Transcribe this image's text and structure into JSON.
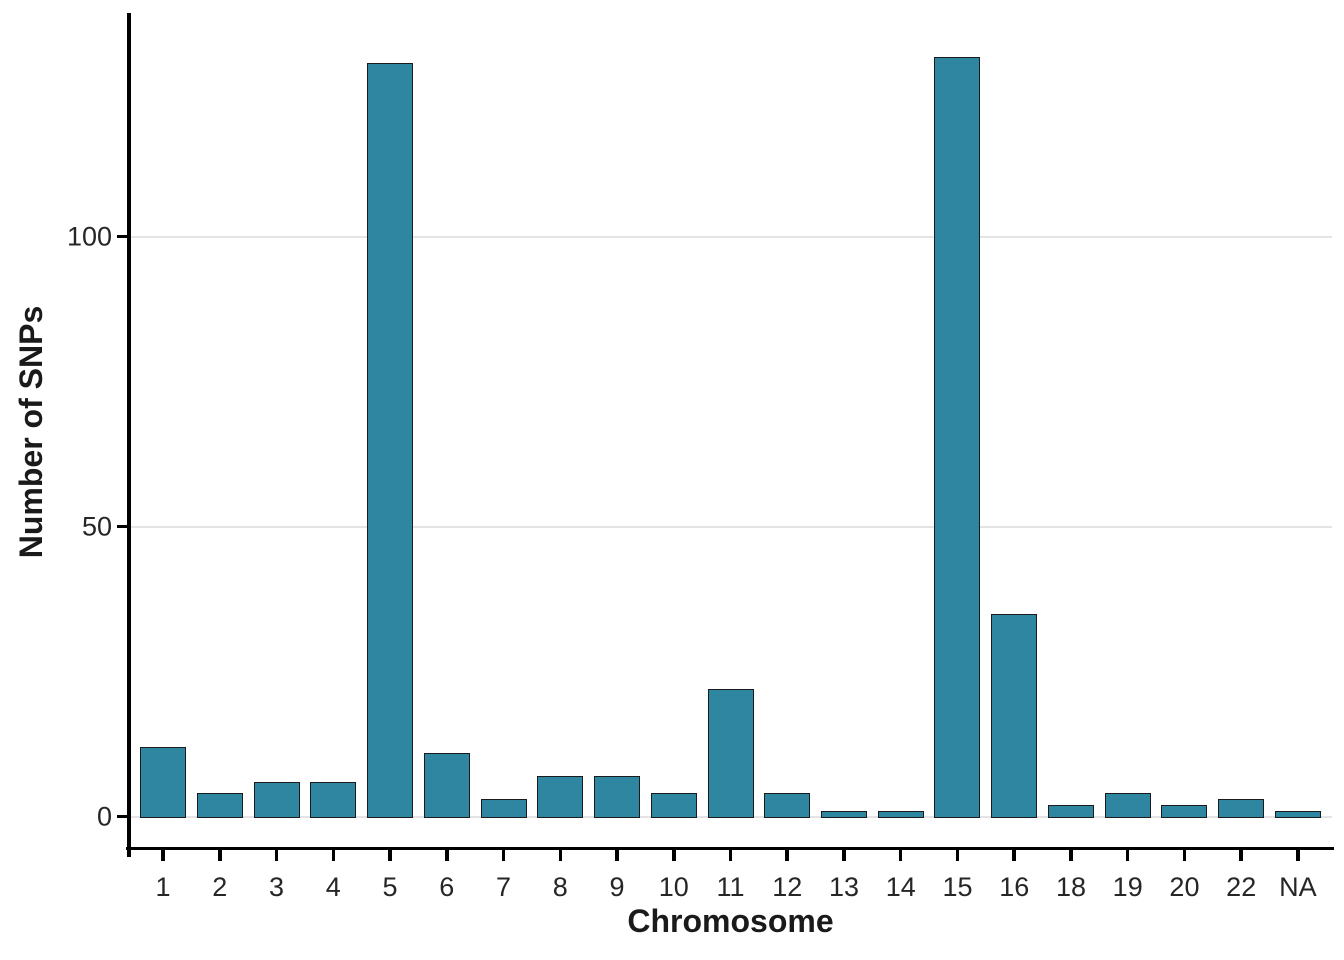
{
  "chart_data": {
    "type": "bar",
    "title": "",
    "xlabel": "Chromosome",
    "ylabel": "Number of SNPs",
    "categories": [
      "1",
      "2",
      "3",
      "4",
      "5",
      "6",
      "7",
      "8",
      "9",
      "10",
      "11",
      "12",
      "13",
      "14",
      "15",
      "16",
      "18",
      "19",
      "20",
      "22",
      "NA"
    ],
    "values": [
      12,
      4,
      6,
      6,
      130,
      11,
      3,
      7,
      7,
      4,
      22,
      4,
      1,
      1,
      131,
      35,
      2,
      4,
      2,
      3,
      1
    ],
    "yticks": [
      0,
      50,
      100
    ],
    "ylim": [
      -5.4,
      138.2
    ],
    "grid": "horizontal-major",
    "legend": "none",
    "bar_color": "#2e86a0",
    "bar_border_color": "#1b1b1b",
    "grid_color": "#e4e4e4",
    "axis_line_color": "#000000",
    "tick_label_color": "#262626",
    "axis_title_color": "#1a1a1a"
  }
}
